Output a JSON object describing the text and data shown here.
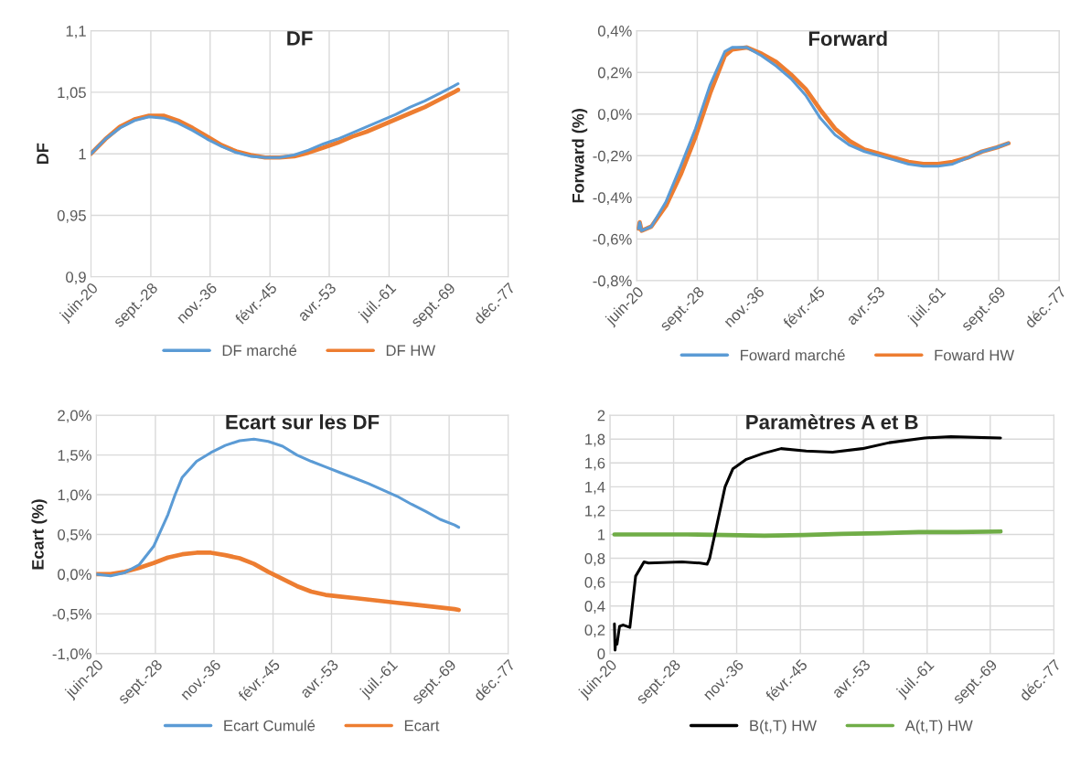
{
  "chart_data": [
    {
      "type": "line",
      "title": "DF",
      "ylabel": "DF",
      "legend": "bottom",
      "grid": true,
      "x": [
        "2020-06",
        "2022-06",
        "2024-06",
        "2026-06",
        "2028-06",
        "2030-06",
        "2032-06",
        "2034-06",
        "2036-06",
        "2038-06",
        "2040-06",
        "2042-06",
        "2044-06",
        "2046-06",
        "2048-06",
        "2050-06",
        "2052-06",
        "2054-06",
        "2056-06",
        "2058-06",
        "2060-06",
        "2062-06",
        "2064-06",
        "2066-06",
        "2068-06",
        "2070-06",
        "2071-01"
      ],
      "series": [
        {
          "name": "DF marché",
          "color": "#5b9bd5",
          "values": [
            1.0,
            1.012,
            1.021,
            1.027,
            1.03,
            1.029,
            1.025,
            1.019,
            1.012,
            1.006,
            1.001,
            0.998,
            0.997,
            0.997,
            0.999,
            1.003,
            1.008,
            1.012,
            1.017,
            1.022,
            1.027,
            1.032,
            1.038,
            1.043,
            1.049,
            1.055,
            1.057
          ]
        },
        {
          "name": "DF HW",
          "color": "#ed7d31",
          "values": [
            1.0,
            1.012,
            1.022,
            1.028,
            1.031,
            1.031,
            1.027,
            1.021,
            1.014,
            1.007,
            1.002,
            0.999,
            0.997,
            0.997,
            0.998,
            1.001,
            1.005,
            1.009,
            1.014,
            1.018,
            1.023,
            1.028,
            1.033,
            1.038,
            1.044,
            1.05,
            1.052
          ]
        }
      ],
      "xlim": [
        "2020-06",
        "2077-12"
      ],
      "xticks": [
        {
          "value": "2020-06",
          "label": "juin-20"
        },
        {
          "value": "2028-09",
          "label": "sept.-28"
        },
        {
          "value": "2036-11",
          "label": "nov.-36"
        },
        {
          "value": "2045-02",
          "label": "févr.-45"
        },
        {
          "value": "2053-04",
          "label": "avr.-53"
        },
        {
          "value": "2061-07",
          "label": "juil.-61"
        },
        {
          "value": "2069-09",
          "label": "sept.-69"
        },
        {
          "value": "2077-12",
          "label": "déc.-77"
        }
      ],
      "ylim": [
        0.9,
        1.1
      ],
      "yticks": [
        {
          "value": 0.9,
          "label": "0,9"
        },
        {
          "value": 0.95,
          "label": "0,95"
        },
        1,
        {
          "value": 1.05,
          "label": "1,05"
        },
        {
          "value": 1.1,
          "label": "1,1"
        }
      ]
    },
    {
      "type": "line",
      "title": "Forward",
      "ylabel": "Forward (%)",
      "legend": "bottom",
      "grid": true,
      "x": [
        "2020-09",
        "2020-11",
        "2021-02",
        "2022-06",
        "2024-06",
        "2026-06",
        "2028-06",
        "2030-06",
        "2032-06",
        "2033-06",
        "2035-06",
        "2037-06",
        "2039-06",
        "2041-06",
        "2043-06",
        "2045-06",
        "2047-06",
        "2049-06",
        "2051-06",
        "2053-06",
        "2055-06",
        "2057-06",
        "2059-06",
        "2061-06",
        "2063-06",
        "2065-06",
        "2067-06",
        "2069-06",
        "2071-01"
      ],
      "series": [
        {
          "name": "Foward marché",
          "color": "#5b9bd5",
          "values": [
            -0.55,
            -0.52,
            -0.56,
            -0.54,
            -0.42,
            -0.25,
            -0.07,
            0.14,
            0.3,
            0.32,
            0.32,
            0.28,
            0.23,
            0.17,
            0.09,
            -0.02,
            -0.1,
            -0.15,
            -0.18,
            -0.2,
            -0.22,
            -0.24,
            -0.25,
            -0.25,
            -0.24,
            -0.21,
            -0.18,
            -0.16,
            -0.14
          ]
        },
        {
          "name": "Foward HW",
          "color": "#ed7d31",
          "values": [
            -0.55,
            -0.52,
            -0.56,
            -0.54,
            -0.44,
            -0.29,
            -0.11,
            0.1,
            0.28,
            0.31,
            0.32,
            0.29,
            0.25,
            0.19,
            0.12,
            0.02,
            -0.07,
            -0.13,
            -0.17,
            -0.19,
            -0.21,
            -0.23,
            -0.24,
            -0.24,
            -0.23,
            -0.21,
            -0.18,
            -0.16,
            -0.14
          ]
        }
      ],
      "xlim": [
        "2020-06",
        "2077-12"
      ],
      "xticks": [
        {
          "value": "2020-06",
          "label": "juin-20"
        },
        {
          "value": "2028-09",
          "label": "sept.-28"
        },
        {
          "value": "2036-11",
          "label": "nov.-36"
        },
        {
          "value": "2045-02",
          "label": "févr.-45"
        },
        {
          "value": "2053-04",
          "label": "avr.-53"
        },
        {
          "value": "2061-07",
          "label": "juil.-61"
        },
        {
          "value": "2069-09",
          "label": "sept.-69"
        },
        {
          "value": "2077-12",
          "label": "déc.-77"
        }
      ],
      "ylim": [
        -0.8,
        0.4
      ],
      "yticks": [
        {
          "value": -0.8,
          "label": "-0,8%"
        },
        {
          "value": -0.6,
          "label": "-0,6%"
        },
        {
          "value": -0.4,
          "label": "-0,4%"
        },
        {
          "value": -0.2,
          "label": "-0,2%"
        },
        {
          "value": 0,
          "label": "0,0%"
        },
        {
          "value": 0.2,
          "label": "0,2%"
        },
        {
          "value": 0.4,
          "label": "0,4%"
        }
      ]
    },
    {
      "type": "line",
      "title": "Ecart sur les DF",
      "ylabel": "Ecart (%)",
      "legend": "bottom",
      "grid": true,
      "x": [
        "2020-06",
        "2022-06",
        "2024-06",
        "2026-06",
        "2028-06",
        "2030-06",
        "2031-06",
        "2032-06",
        "2034-06",
        "2036-06",
        "2038-06",
        "2040-06",
        "2042-06",
        "2044-06",
        "2046-06",
        "2048-06",
        "2050-06",
        "2052-06",
        "2054-06",
        "2056-06",
        "2058-06",
        "2060-06",
        "2062-06",
        "2064-06",
        "2066-06",
        "2068-06",
        "2070-06",
        "2071-01"
      ],
      "series": [
        {
          "name": "Ecart Cumulé",
          "color": "#5b9bd5",
          "values": [
            0,
            -0.02,
            0.02,
            0.12,
            0.35,
            0.75,
            1.0,
            1.22,
            1.42,
            1.53,
            1.62,
            1.68,
            1.7,
            1.67,
            1.61,
            1.5,
            1.42,
            1.35,
            1.28,
            1.21,
            1.14,
            1.06,
            0.98,
            0.88,
            0.79,
            0.69,
            0.62,
            0.59
          ]
        },
        {
          "name": "Ecart",
          "color": "#ed7d31",
          "values": [
            0,
            0,
            0.03,
            0.08,
            0.14,
            0.21,
            0.23,
            0.25,
            0.27,
            0.27,
            0.24,
            0.2,
            0.13,
            0.03,
            -0.06,
            -0.15,
            -0.22,
            -0.26,
            -0.28,
            -0.3,
            -0.32,
            -0.34,
            -0.36,
            -0.38,
            -0.4,
            -0.42,
            -0.44,
            -0.45
          ]
        }
      ],
      "xlim": [
        "2020-06",
        "2077-12"
      ],
      "xticks": [
        {
          "value": "2020-06",
          "label": "juin-20"
        },
        {
          "value": "2028-09",
          "label": "sept.-28"
        },
        {
          "value": "2036-11",
          "label": "nov.-36"
        },
        {
          "value": "2045-02",
          "label": "févr.-45"
        },
        {
          "value": "2053-04",
          "label": "avr.-53"
        },
        {
          "value": "2061-07",
          "label": "juil.-61"
        },
        {
          "value": "2069-09",
          "label": "sept.-69"
        },
        {
          "value": "2077-12",
          "label": "déc.-77"
        }
      ],
      "ylim": [
        -1.0,
        2.0
      ],
      "yticks": [
        {
          "value": -1.0,
          "label": "-1,0%"
        },
        {
          "value": -0.5,
          "label": "-0,5%"
        },
        {
          "value": 0,
          "label": "0,0%"
        },
        {
          "value": 0.5,
          "label": "0,5%"
        },
        {
          "value": 1.0,
          "label": "1,0%"
        },
        {
          "value": 1.5,
          "label": "1,5%"
        },
        {
          "value": 2.0,
          "label": "2,0%"
        }
      ]
    },
    {
      "type": "line",
      "title": "Paramètres A et B",
      "legend": "bottom",
      "grid": true,
      "series": [
        {
          "name": "B(t,T) HW",
          "color": "#000000",
          "x": [
            "2021-01",
            "2021-02",
            "2021-03",
            "2021-05",
            "2021-09",
            "2022-03",
            "2023-01",
            "2023-10",
            "2024-11",
            "2025-06",
            "2029-10",
            "2032-02",
            "2033-01",
            "2033-05",
            "2034-01",
            "2035-05",
            "2036-05",
            "2038-02",
            "2040-04",
            "2042-08",
            "2045-11",
            "2049-04",
            "2053-02",
            "2056-08",
            "2061-03",
            "2064-08",
            "2071-01"
          ],
          "values": [
            0.25,
            0.03,
            0.1,
            0.08,
            0.23,
            0.24,
            0.22,
            0.65,
            0.77,
            0.76,
            0.77,
            0.76,
            0.75,
            0.8,
            1.0,
            1.4,
            1.55,
            1.63,
            1.68,
            1.72,
            1.7,
            1.69,
            1.72,
            1.77,
            1.81,
            1.82,
            1.81
          ]
        },
        {
          "name": "A(t,T) HW",
          "color": "#70ad47",
          "x": [
            "2021-01",
            "2025-06",
            "2030-06",
            "2035-06",
            "2040-06",
            "2045-06",
            "2050-06",
            "2055-06",
            "2060-06",
            "2065-06",
            "2071-01"
          ],
          "values": [
            1.0,
            1.0,
            1.0,
            0.995,
            0.99,
            0.995,
            1.005,
            1.01,
            1.02,
            1.02,
            1.025
          ]
        }
      ],
      "xlim": [
        "2020-06",
        "2077-12"
      ],
      "xticks": [
        {
          "value": "2020-06",
          "label": "juin-20"
        },
        {
          "value": "2028-09",
          "label": "sept.-28"
        },
        {
          "value": "2036-11",
          "label": "nov.-36"
        },
        {
          "value": "2045-02",
          "label": "févr.-45"
        },
        {
          "value": "2053-04",
          "label": "avr.-53"
        },
        {
          "value": "2061-07",
          "label": "juil.-61"
        },
        {
          "value": "2069-09",
          "label": "sept.-69"
        },
        {
          "value": "2077-12",
          "label": "déc.-77"
        }
      ],
      "ylim": [
        0,
        2
      ],
      "yticks": [
        0,
        {
          "value": 0.2,
          "label": "0,2"
        },
        {
          "value": 0.4,
          "label": "0,4"
        },
        {
          "value": 0.6,
          "label": "0,6"
        },
        {
          "value": 0.8,
          "label": "0,8"
        },
        1,
        {
          "value": 1.2,
          "label": "1,2"
        },
        {
          "value": 1.4,
          "label": "1,4"
        },
        {
          "value": 1.6,
          "label": "1,6"
        },
        {
          "value": 1.8,
          "label": "1,8"
        },
        2
      ]
    }
  ]
}
